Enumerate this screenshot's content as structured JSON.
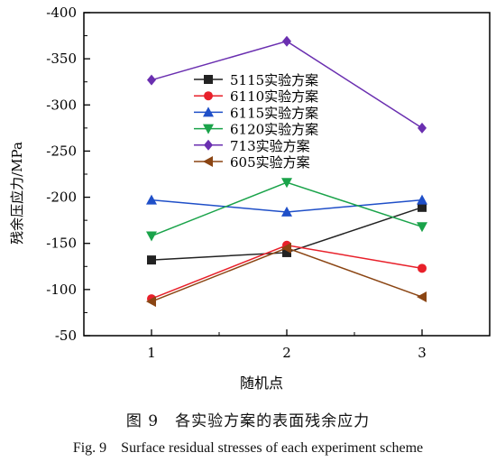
{
  "chart_data": {
    "type": "line",
    "xlabel": "随机点",
    "ylabel": "残余压应力/MPa",
    "x": [
      1,
      2,
      3
    ],
    "x_ticks": [
      "1",
      "2",
      "3"
    ],
    "xlim": [
      0.5,
      3.5
    ],
    "ylim": [
      -50,
      -400
    ],
    "y_ticks": [
      -400,
      -350,
      -300,
      -250,
      -200,
      -150,
      -100,
      -50
    ],
    "y_tick_labels": [
      "-400",
      "-350",
      "-300",
      "-250",
      "-200",
      "-150",
      "-100",
      "-50"
    ],
    "grid": false,
    "legend_position": "top-center",
    "series": [
      {
        "name": "5115实验方案",
        "values": [
          -132,
          -140,
          -189
        ],
        "color": "#222222",
        "marker": "square"
      },
      {
        "name": "6110实验方案",
        "values": [
          -90,
          -148,
          -123
        ],
        "color": "#e8202a",
        "marker": "circle"
      },
      {
        "name": "6115实验方案",
        "values": [
          -197,
          -184,
          -197
        ],
        "color": "#1f4fc8",
        "marker": "triangle-up"
      },
      {
        "name": "6120实验方案",
        "values": [
          -158,
          -216,
          -168
        ],
        "color": "#1aa34a",
        "marker": "triangle-down"
      },
      {
        "name": "713实验方案",
        "values": [
          -327,
          -369,
          -275
        ],
        "color": "#6a2fb0",
        "marker": "diamond"
      },
      {
        "name": "605实验方案",
        "values": [
          -87,
          -145,
          -92
        ],
        "color": "#8b4513",
        "marker": "triangle-left"
      }
    ]
  },
  "caption": {
    "cn": "图 9　各实验方案的表面残余应力",
    "en": "Fig. 9　Surface residual stresses of each experiment scheme"
  }
}
